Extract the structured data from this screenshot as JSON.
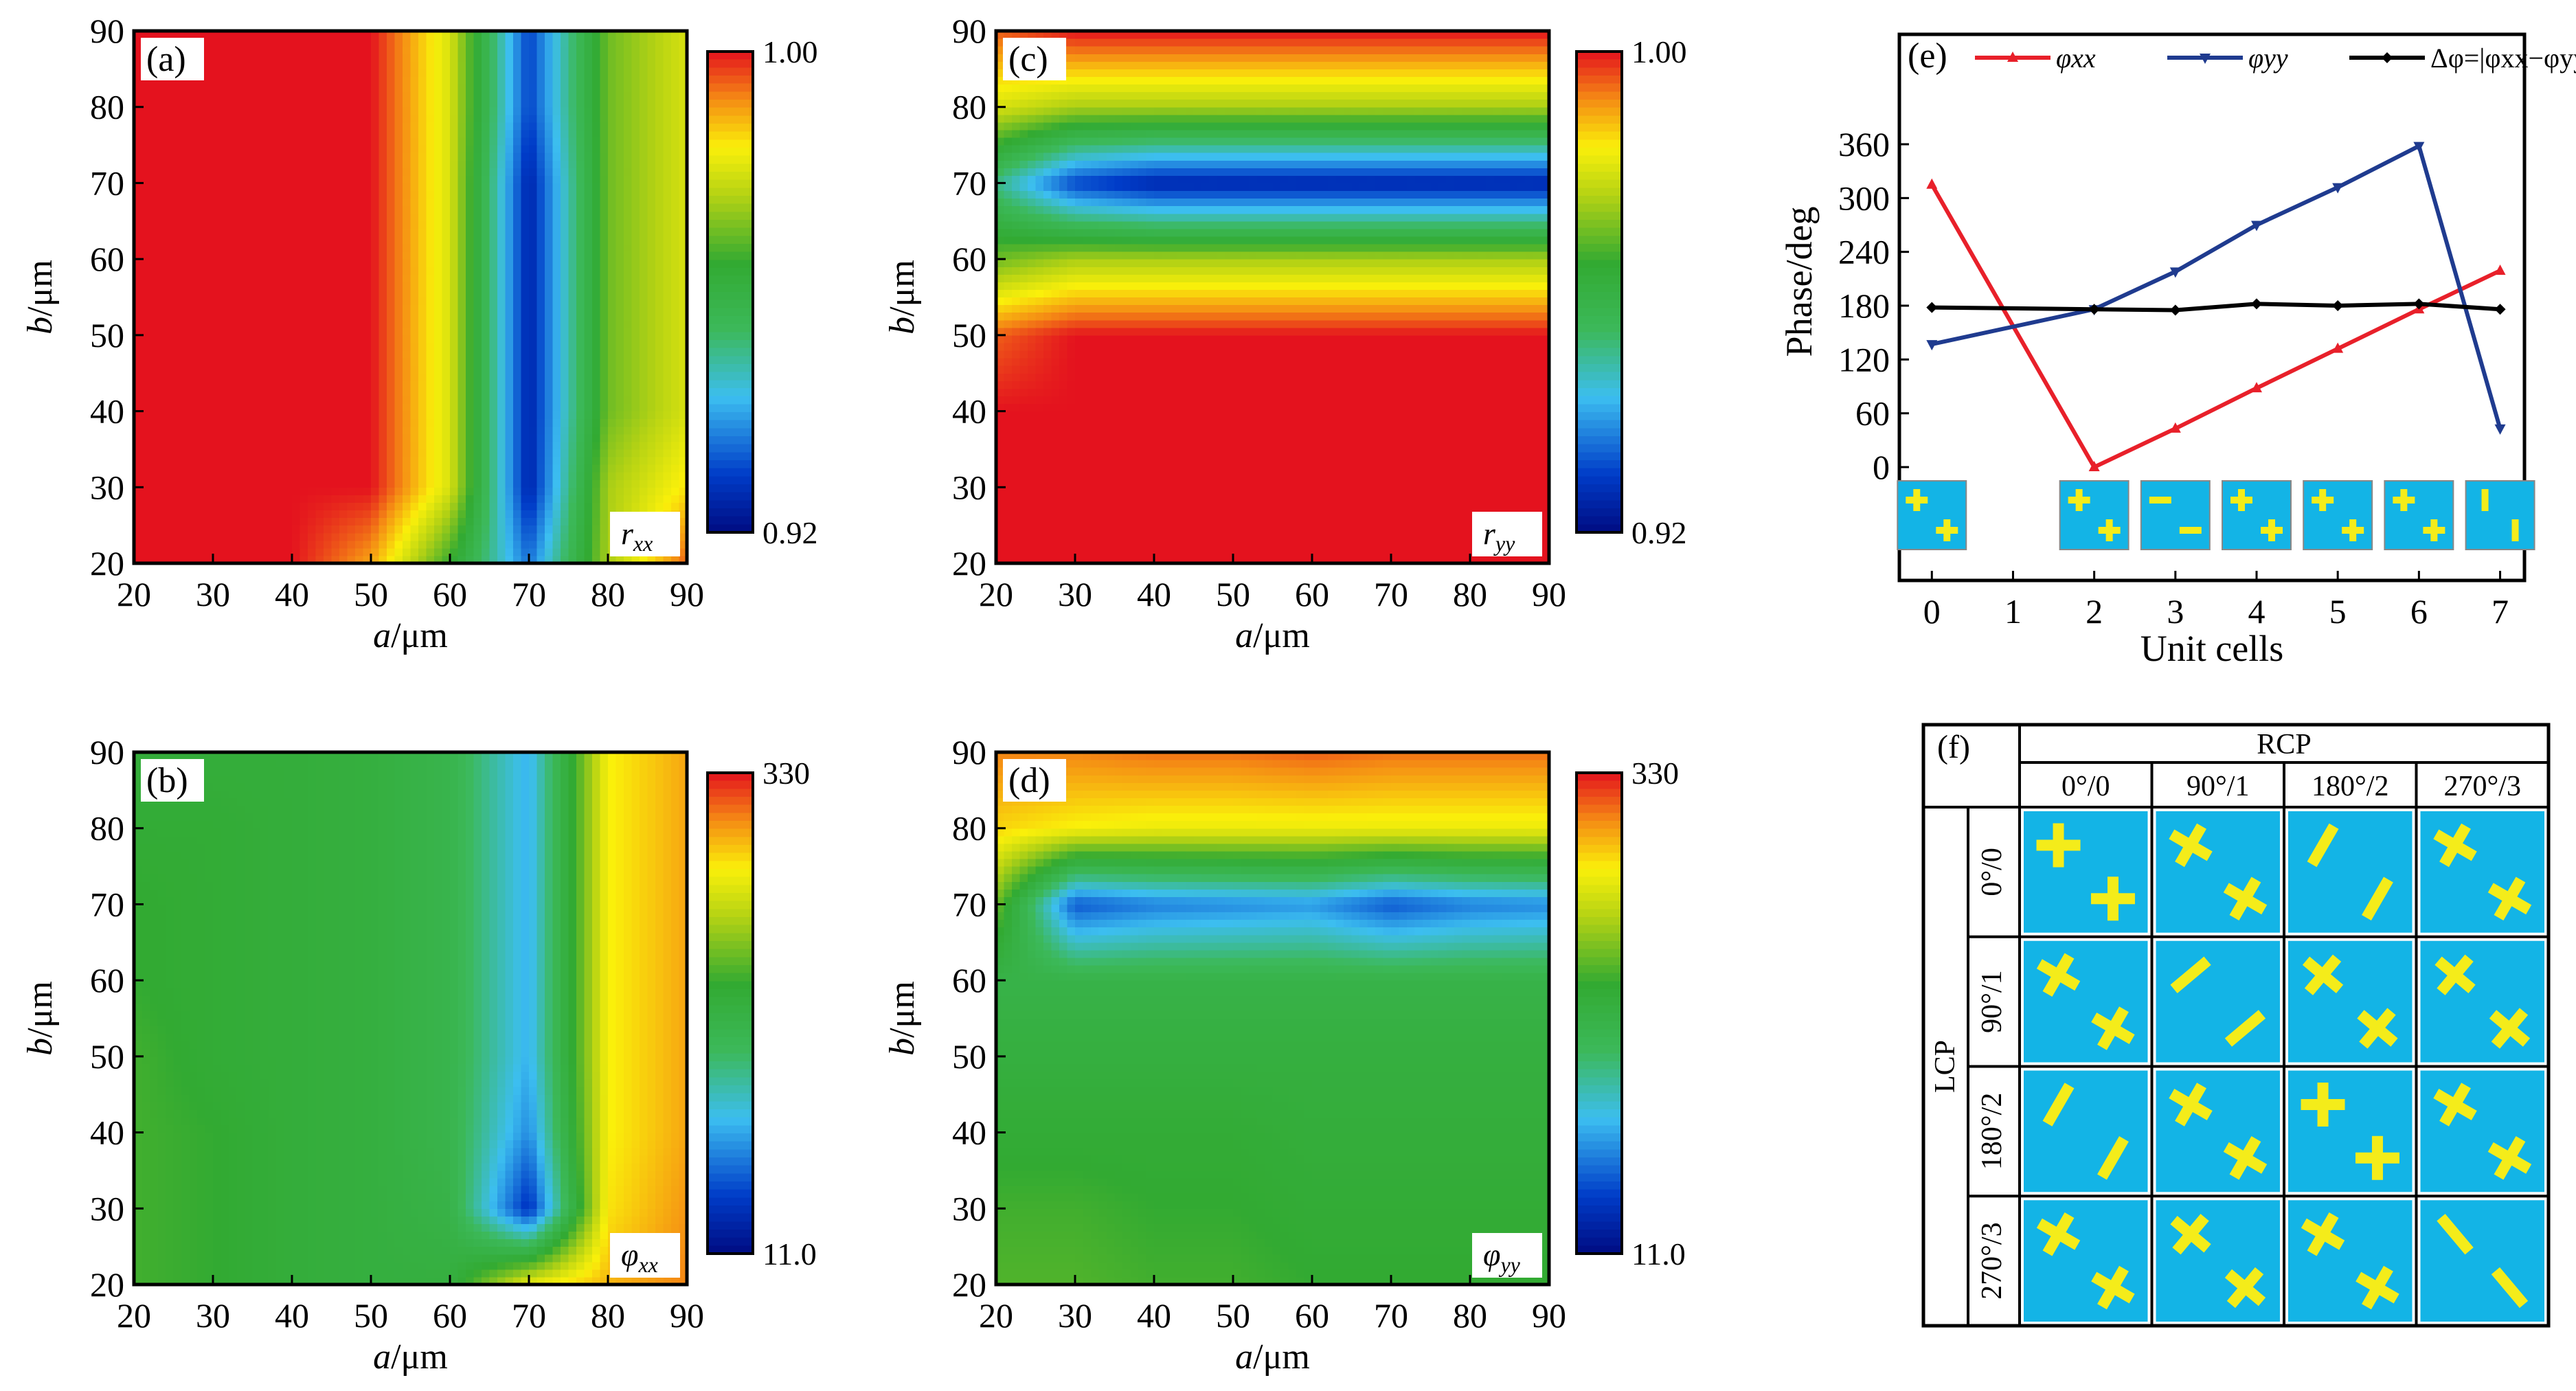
{
  "figure": {
    "panels": {
      "a": {
        "label": "(a)",
        "inset": "r",
        "inset_sub": "xx",
        "cbar_max": "1.00",
        "cbar_min": "0.92",
        "xlabel_italic": "a",
        "xlabel_rest": "/μm",
        "ylabel_italic": "b",
        "ylabel_rest": "/μm"
      },
      "b": {
        "label": "(b)",
        "inset": "φ",
        "inset_sub": "xx",
        "cbar_max": "330",
        "cbar_min": "11.0",
        "xlabel_italic": "a",
        "xlabel_rest": "/μm",
        "ylabel_italic": "b",
        "ylabel_rest": "/μm"
      },
      "c": {
        "label": "(c)",
        "inset": "r",
        "inset_sub": "yy",
        "cbar_max": "1.00",
        "cbar_min": "0.92",
        "xlabel_italic": "a",
        "xlabel_rest": "/μm",
        "ylabel_italic": "b",
        "ylabel_rest": "/μm"
      },
      "d": {
        "label": "(d)",
        "inset": "φ",
        "inset_sub": "yy",
        "cbar_max": "330",
        "cbar_min": "11.0",
        "xlabel_italic": "a",
        "xlabel_rest": "/μm",
        "ylabel_italic": "b",
        "ylabel_rest": "/μm"
      },
      "e": {
        "label": "(e)",
        "ylabel": "Phase/deg",
        "xlabel": "Unit cells"
      },
      "f": {
        "label": "(f)",
        "rcp": "RCP",
        "lcp": "LCP",
        "columns": [
          "0°/0",
          "90°/1",
          "180°/2",
          "270°/3"
        ],
        "rows": [
          "0°/0",
          "90°/1",
          "180°/2",
          "270°/3"
        ]
      }
    }
  },
  "chart_data": [
    {
      "panel": "a",
      "type": "heatmap",
      "quantity": "r_xx",
      "x": [
        20,
        30,
        40,
        50,
        60,
        70,
        80,
        90
      ],
      "y": [
        20,
        30,
        40,
        50,
        60,
        70,
        80,
        90
      ],
      "xlim": [
        20,
        90
      ],
      "ylim": [
        20,
        90
      ],
      "zlim": [
        0.92,
        1.0
      ],
      "xlabel": "a/μm",
      "ylabel": "b/μm",
      "colorbar_ticks": [
        "0.92",
        "1.00"
      ],
      "values_rows_y_ascending": [
        [
          1.0,
          1.0,
          1.0,
          0.99,
          0.965,
          0.935,
          0.975,
          0.995
        ],
        [
          1.0,
          1.0,
          1.0,
          1.0,
          0.98,
          0.925,
          0.975,
          0.985
        ],
        [
          1.0,
          1.0,
          1.0,
          1.0,
          0.98,
          0.925,
          0.97,
          0.98
        ],
        [
          1.0,
          1.0,
          1.0,
          1.0,
          0.98,
          0.925,
          0.97,
          0.98
        ],
        [
          1.0,
          1.0,
          1.0,
          1.0,
          0.98,
          0.925,
          0.97,
          0.98
        ],
        [
          1.0,
          1.0,
          1.0,
          1.0,
          0.98,
          0.925,
          0.97,
          0.98
        ],
        [
          1.0,
          1.0,
          1.0,
          1.0,
          0.98,
          0.93,
          0.97,
          0.98
        ],
        [
          1.0,
          1.0,
          1.0,
          1.0,
          0.98,
          0.93,
          0.97,
          0.98
        ]
      ]
    },
    {
      "panel": "c",
      "type": "heatmap",
      "quantity": "r_yy",
      "x": [
        20,
        30,
        40,
        50,
        60,
        70,
        80,
        90
      ],
      "y": [
        20,
        30,
        40,
        50,
        60,
        70,
        80,
        90
      ],
      "xlim": [
        20,
        90
      ],
      "ylim": [
        20,
        90
      ],
      "zlim": [
        0.92,
        1.0
      ],
      "xlabel": "a/μm",
      "ylabel": "b/μm",
      "colorbar_ticks": [
        "0.92",
        "1.00"
      ],
      "values_rows_y_ascending": [
        [
          1.0,
          1.0,
          1.0,
          1.0,
          1.0,
          1.0,
          1.0,
          1.0
        ],
        [
          1.0,
          1.0,
          1.0,
          1.0,
          1.0,
          1.0,
          1.0,
          1.0
        ],
        [
          1.0,
          1.0,
          1.0,
          1.0,
          1.0,
          1.0,
          1.0,
          1.0
        ],
        [
          0.995,
          1.0,
          1.0,
          1.0,
          1.0,
          1.0,
          1.0,
          1.0
        ],
        [
          0.97,
          0.975,
          0.975,
          0.975,
          0.975,
          0.975,
          0.975,
          0.975
        ],
        [
          0.95,
          0.93,
          0.925,
          0.925,
          0.925,
          0.925,
          0.925,
          0.925
        ],
        [
          0.98,
          0.975,
          0.975,
          0.975,
          0.975,
          0.975,
          0.975,
          0.975
        ],
        [
          0.995,
          1.0,
          1.0,
          1.0,
          1.0,
          1.0,
          1.0,
          1.0
        ]
      ]
    },
    {
      "panel": "b",
      "type": "heatmap",
      "quantity": "φ_xx",
      "x": [
        20,
        30,
        40,
        50,
        60,
        70,
        80,
        90
      ],
      "y": [
        20,
        30,
        40,
        50,
        60,
        70,
        80,
        90
      ],
      "xlim": [
        20,
        90
      ],
      "ylim": [
        20,
        90
      ],
      "zlim": [
        11.0,
        330
      ],
      "xlabel": "a/μm",
      "ylabel": "b/μm",
      "colorbar_ticks": [
        "11.0",
        "330"
      ],
      "values_rows_y_ascending": [
        [
          195,
          190,
          180,
          175,
          175,
          260,
          285,
          300
        ],
        [
          195,
          190,
          180,
          175,
          165,
          40,
          270,
          295
        ],
        [
          195,
          190,
          180,
          175,
          160,
          80,
          265,
          290
        ],
        [
          195,
          185,
          180,
          175,
          160,
          95,
          265,
          290
        ],
        [
          190,
          185,
          180,
          175,
          160,
          95,
          265,
          290
        ],
        [
          190,
          185,
          180,
          175,
          160,
          95,
          265,
          290
        ],
        [
          185,
          185,
          180,
          175,
          160,
          95,
          265,
          290
        ],
        [
          180,
          180,
          180,
          175,
          160,
          95,
          265,
          290
        ]
      ]
    },
    {
      "panel": "d",
      "type": "heatmap",
      "quantity": "φ_yy",
      "x": [
        20,
        30,
        40,
        50,
        60,
        70,
        80,
        90
      ],
      "y": [
        20,
        30,
        40,
        50,
        60,
        70,
        80,
        90
      ],
      "xlim": [
        20,
        90
      ],
      "ylim": [
        20,
        90
      ],
      "zlim": [
        11.0,
        330
      ],
      "xlabel": "a/μm",
      "ylabel": "b/μm",
      "colorbar_ticks": [
        "11.0",
        "330"
      ],
      "values_rows_y_ascending": [
        [
          200,
          200,
          195,
          195,
          190,
          190,
          190,
          190
        ],
        [
          195,
          195,
          190,
          190,
          185,
          185,
          185,
          185
        ],
        [
          185,
          185,
          185,
          185,
          180,
          180,
          180,
          180
        ],
        [
          175,
          175,
          175,
          175,
          175,
          175,
          175,
          175
        ],
        [
          165,
          165,
          165,
          165,
          165,
          165,
          165,
          165
        ],
        [
          210,
          60,
          75,
          80,
          85,
          60,
          75,
          80
        ],
        [
          275,
          265,
          260,
          260,
          260,
          260,
          260,
          260
        ],
        [
          300,
          300,
          305,
          305,
          310,
          305,
          305,
          305
        ]
      ]
    },
    {
      "panel": "e",
      "type": "line",
      "x": [
        0,
        2,
        3,
        4,
        5,
        6,
        7
      ],
      "xlim": [
        -0.4,
        7.3
      ],
      "ylim": [
        0,
        360
      ],
      "yticks": [
        0,
        60,
        120,
        180,
        240,
        300,
        360
      ],
      "xticks": [
        0,
        1,
        2,
        3,
        4,
        5,
        6,
        7
      ],
      "xlabel": "Unit cells",
      "ylabel": "Phase/deg",
      "legend": "top",
      "series": [
        {
          "name": "φxx",
          "color": "#e8202a",
          "values": [
            315,
            0,
            43,
            88,
            132,
            176,
            219
          ]
        },
        {
          "name": "φyy",
          "color": "#1f3b8f",
          "values": [
            137,
            176,
            218,
            270,
            312,
            358,
            43
          ]
        },
        {
          "name": "Δφ=|φxx−φyy|",
          "color": "#000000",
          "values": [
            178,
            176,
            175,
            182,
            180,
            182,
            176
          ]
        }
      ]
    }
  ]
}
